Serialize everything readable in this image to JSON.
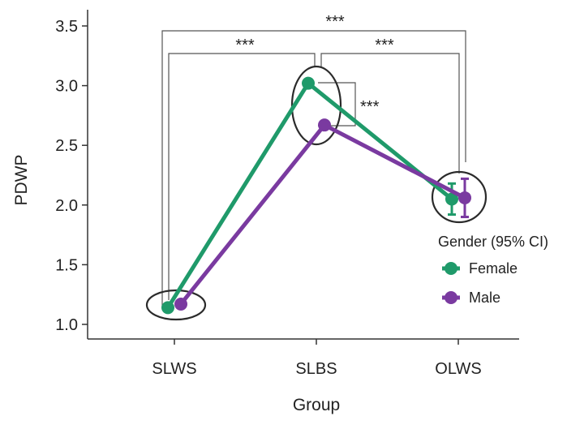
{
  "chart_data": {
    "type": "line",
    "title": "",
    "xlabel": "Group",
    "ylabel": "PDWP",
    "categories": [
      "SLWS",
      "SLBS",
      "OLWS"
    ],
    "ylim": [
      0.9,
      3.6
    ],
    "yticks": [
      "1.0",
      "1.5",
      "2.0",
      "2.5",
      "3.0",
      "3.5"
    ],
    "grid": false,
    "legend": {
      "title": "Gender (95% CI)",
      "position": "right",
      "entries": [
        "Female",
        "Male"
      ]
    },
    "series": [
      {
        "name": "Female",
        "color": "#1f9a6a",
        "values": [
          1.14,
          3.02,
          2.05
        ],
        "ci_low": [
          1.11,
          2.99,
          1.92
        ],
        "ci_high": [
          1.17,
          3.05,
          2.18
        ]
      },
      {
        "name": "Male",
        "color": "#7a3aa0",
        "values": [
          1.17,
          2.67,
          2.06
        ],
        "ci_low": [
          1.14,
          2.64,
          1.9
        ],
        "ci_high": [
          1.2,
          2.7,
          2.22
        ]
      }
    ],
    "annotations": [
      {
        "text": "***",
        "between": [
          "SLWS",
          "OLWS"
        ]
      },
      {
        "text": "***",
        "between": [
          "SLWS",
          "SLBS"
        ]
      },
      {
        "text": "***",
        "between": [
          "SLBS",
          "OLWS"
        ]
      },
      {
        "text": "***",
        "between": [
          "Female",
          "Male"
        ],
        "at": "SLBS"
      }
    ]
  }
}
